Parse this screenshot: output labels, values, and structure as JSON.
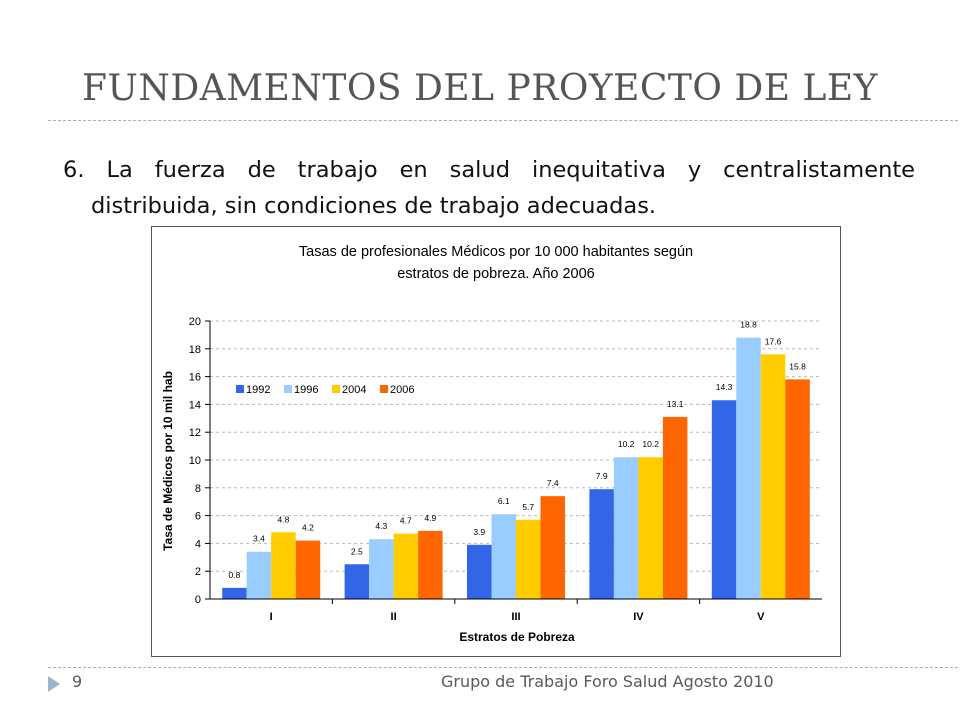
{
  "slide": {
    "title": "FUNDAMENTOS DEL PROYECTO DE LEY",
    "body": "6. La fuerza de trabajo en salud inequitativa y centralistamente distribuida, sin condiciones de trabajo adecuadas.",
    "footer_page": "9",
    "footer_text": "Grupo de Trabajo Foro Salud   Agosto 2010",
    "accent_color": "#9bb5c9"
  },
  "chart_data": {
    "type": "bar",
    "title_line1": "Tasas de profesionales Médicos por 10 000 habitantes según",
    "title_line2": "estratos de pobreza. Año 2006",
    "xlabel": "Estratos de Pobreza",
    "ylabel": "Tasa de Médicos por 10 mil hab",
    "categories": [
      "I",
      "II",
      "III",
      "IV",
      "V"
    ],
    "ylim": [
      0,
      20
    ],
    "yticks": [
      0,
      2,
      4,
      6,
      8,
      10,
      12,
      14,
      16,
      18,
      20
    ],
    "grid": true,
    "legend_position": "top-left",
    "series": [
      {
        "name": "1992",
        "color": "#3366e6",
        "values": [
          0.8,
          2.5,
          3.9,
          7.9,
          14.3
        ]
      },
      {
        "name": "1996",
        "color": "#99ccff",
        "values": [
          3.4,
          4.3,
          6.1,
          10.2,
          18.8
        ]
      },
      {
        "name": "2004",
        "color": "#ffcc00",
        "values": [
          4.8,
          4.7,
          5.7,
          10.2,
          17.6
        ]
      },
      {
        "name": "2006",
        "color": "#ff6600",
        "values": [
          4.2,
          4.9,
          7.4,
          13.1,
          15.8
        ]
      }
    ]
  }
}
